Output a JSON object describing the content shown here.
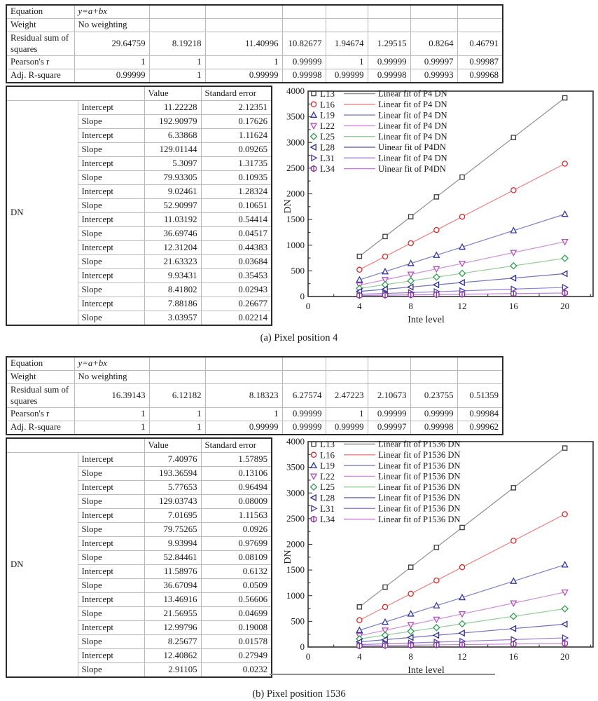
{
  "panels": [
    {
      "caption": "(a) Pixel position 4",
      "stats_table": {
        "rows": [
          {
            "label": "Equation",
            "cells": [
              "y=a+bx",
              "",
              "",
              "",
              "",
              "",
              "",
              ""
            ]
          },
          {
            "label": "Weight",
            "cells": [
              "No weighting",
              "",
              "",
              "",
              "",
              "",
              "",
              ""
            ]
          },
          {
            "label": "Residual sum of squares",
            "cells": [
              "29.64759",
              "8.19218",
              "11.40996",
              "10.82677",
              "1.94674",
              "1.29515",
              "0.8264",
              "0.46791"
            ]
          },
          {
            "label": "Pearson's r",
            "cells": [
              "1",
              "1",
              "1",
              "0.99999",
              "1",
              "0.99999",
              "0.99997",
              "0.99987"
            ]
          },
          {
            "label": "Adj. R-square",
            "cells": [
              "0.99999",
              "1",
              "0.99999",
              "0.99998",
              "0.99999",
              "0.99998",
              "0.99993",
              "0.99968"
            ]
          }
        ]
      },
      "fit_table": {
        "group_label": "DN",
        "col_headers": [
          "",
          "",
          "Value",
          "Standard error"
        ],
        "rows": [
          [
            "Intercept",
            "11.22228",
            "2.12351"
          ],
          [
            "Slope",
            "192.90979",
            "0.17626"
          ],
          [
            "Intercept",
            "6.33868",
            "1.11624"
          ],
          [
            "Slope",
            "129.01144",
            "0.09265"
          ],
          [
            "Intercept",
            "5.3097",
            "1.31735"
          ],
          [
            "Slope",
            "79.93305",
            "0.10935"
          ],
          [
            "Intercept",
            "9.02461",
            "1.28324"
          ],
          [
            "Slope",
            "52.90997",
            "0.10651"
          ],
          [
            "Intercept",
            "11.03192",
            "0.54414"
          ],
          [
            "Slope",
            "36.69746",
            "0.04517"
          ],
          [
            "Intercept",
            "12.31204",
            "0.44383"
          ],
          [
            "Slope",
            "21.63323",
            "0.03684"
          ],
          [
            "Intercept",
            "9.93431",
            "0.35453"
          ],
          [
            "Slope",
            "8.41802",
            "0.02943"
          ],
          [
            "Intercept",
            "7.88186",
            "0.26677"
          ],
          [
            "Slope",
            "3.03957",
            "0.02214"
          ]
        ]
      }
    },
    {
      "caption": "(b) Pixel position 1536",
      "stats_table": {
        "rows": [
          {
            "label": "Equation",
            "cells": [
              "y=a+bx",
              "",
              "",
              "",
              "",
              "",
              "",
              ""
            ]
          },
          {
            "label": "Weight",
            "cells": [
              "No weighting",
              "",
              "",
              "",
              "",
              "",
              "",
              ""
            ]
          },
          {
            "label": "Residual sum of squares",
            "cells": [
              "16.39143",
              "6.12182",
              "8.18323",
              "6.27574",
              "2.47223",
              "2.10673",
              "0.23755",
              "0.51359"
            ]
          },
          {
            "label": "Pearson's r",
            "cells": [
              "1",
              "1",
              "1",
              "0.99999",
              "1",
              "0.99999",
              "0.99999",
              "0.99984"
            ]
          },
          {
            "label": "Adj. R-square",
            "cells": [
              "1",
              "1",
              "0.99999",
              "0.99999",
              "0.99999",
              "0.99997",
              "0.99998",
              "0.99962"
            ]
          }
        ]
      },
      "fit_table": {
        "group_label": "DN",
        "col_headers": [
          "",
          "",
          "Value",
          "Standard error"
        ],
        "rows": [
          [
            "Intercept",
            "7.40976",
            "1.57895"
          ],
          [
            "Slope",
            "193.36594",
            "0.13106"
          ],
          [
            "Intercept",
            "5.77653",
            "0.96494"
          ],
          [
            "Slope",
            "129.03743",
            "0.08009"
          ],
          [
            "Intercept",
            "7.01695",
            "1.11563"
          ],
          [
            "Slope",
            "79.75265",
            "0.0926"
          ],
          [
            "Intercept",
            "9.93994",
            "0.97699"
          ],
          [
            "Slope",
            "52.84461",
            "0.08109"
          ],
          [
            "Intercept",
            "11.58976",
            "0.6132"
          ],
          [
            "Slope",
            "36.67094",
            "0.0509"
          ],
          [
            "Intercept",
            "13.46916",
            "0.56606"
          ],
          [
            "Slope",
            "21.56955",
            "0.04699"
          ],
          [
            "Intercept",
            "12.99796",
            "0.19008"
          ],
          [
            "Slope",
            "8.25677",
            "0.01578"
          ],
          [
            "Intercept",
            "12.40862",
            "0.27949"
          ],
          [
            "Slope",
            "2.91105",
            "0.0232"
          ]
        ]
      }
    }
  ],
  "chart_data": [
    {
      "type": "line",
      "title": "",
      "xlabel": "Inte level",
      "ylabel": "DN",
      "xlim": [
        0,
        22.2
      ],
      "ylim": [
        0,
        4000
      ],
      "xticks": [
        0,
        4,
        8,
        12,
        16,
        20
      ],
      "yticks": [
        0,
        500,
        1000,
        1500,
        2000,
        2500,
        3000,
        3500,
        4000
      ],
      "x_minor_step": 2,
      "y_minor_step": 250,
      "grid": false,
      "legend_position": "top-left-inside",
      "x": [
        4,
        6,
        8,
        10,
        12,
        16,
        20
      ],
      "series": [
        {
          "name": "L13",
          "fit_label": "Linear fit of P4 DN",
          "marker": "square",
          "marker_color": "#3d3d3d",
          "line_color": "#8f8f8f",
          "values": [
            783,
            1169,
            1555,
            1941,
            2326,
            3098,
            3869
          ]
        },
        {
          "name": "L16",
          "fit_label": "Linear fit of P4 DN",
          "marker": "circle",
          "marker_color": "#d42a2a",
          "line_color": "#ea8080",
          "values": [
            522,
            780,
            1038,
            1296,
            1555,
            2070,
            2587
          ]
        },
        {
          "name": "L19",
          "fit_label": "Linear fit of P4 DN",
          "marker": "triangle-up",
          "marker_color": "#32379b",
          "line_color": "#7b7fc4",
          "values": [
            325,
            485,
            645,
            805,
            964,
            1284,
            1604
          ]
        },
        {
          "name": "L22",
          "fit_label": "Linear fit of P4 DN",
          "marker": "triangle-down",
          "marker_color": "#b44fbe",
          "line_color": "#cc8fd6",
          "values": [
            221,
            326,
            432,
            538,
            644,
            856,
            1067
          ]
        },
        {
          "name": "L25",
          "fit_label": "Linear fit of P4 DN",
          "marker": "diamond",
          "marker_color": "#2f9e4f",
          "line_color": "#93cb98",
          "values": [
            158,
            231,
            305,
            378,
            451,
            598,
            745
          ]
        },
        {
          "name": "L28",
          "fit_label": "Uinear fit of P4DN",
          "marker": "triangle-left",
          "marker_color": "#2e2e8f",
          "line_color": "#7070b8",
          "values": [
            99,
            142,
            185,
            229,
            272,
            358,
            445
          ]
        },
        {
          "name": "L31",
          "fit_label": "Linear fit of P4 DN",
          "marker": "triangle-right",
          "marker_color": "#4a3fa5",
          "line_color": "#9a7fd0",
          "values": [
            44,
            60,
            77,
            94,
            111,
            145,
            178
          ]
        },
        {
          "name": "L34",
          "fit_label": "Uinear fit of P4DN",
          "marker": "hexagon",
          "marker_color": "#8a2f9e",
          "line_color": "#bd7fd2",
          "values": [
            20,
            26,
            32,
            38,
            44,
            57,
            69
          ]
        }
      ]
    },
    {
      "type": "line",
      "title": "",
      "xlabel": "Inte level",
      "ylabel": "DN",
      "xlim": [
        0,
        22.2
      ],
      "ylim": [
        0,
        4000
      ],
      "xticks": [
        0,
        4,
        8,
        12,
        16,
        20
      ],
      "yticks": [
        0,
        500,
        1000,
        1500,
        2000,
        2500,
        3000,
        3500,
        4000
      ],
      "x_minor_step": 2,
      "y_minor_step": 250,
      "grid": false,
      "legend_position": "top-left-inside",
      "x": [
        4,
        6,
        8,
        10,
        12,
        16,
        20
      ],
      "series": [
        {
          "name": "L13",
          "fit_label": "Linear fit of P1536 DN",
          "marker": "square",
          "marker_color": "#3d3d3d",
          "line_color": "#8f8f8f",
          "values": [
            781,
            1168,
            1554,
            1941,
            2328,
            3101,
            3875
          ]
        },
        {
          "name": "L16",
          "fit_label": "Linear fit of P1536 DN",
          "marker": "circle",
          "marker_color": "#d42a2a",
          "line_color": "#ea8080",
          "values": [
            522,
            780,
            1038,
            1296,
            1554,
            2070,
            2587
          ]
        },
        {
          "name": "L19",
          "fit_label": "Linear fit of P1536 DN",
          "marker": "triangle-up",
          "marker_color": "#32379b",
          "line_color": "#7b7fc4",
          "values": [
            326,
            486,
            645,
            805,
            964,
            1283,
            1602
          ]
        },
        {
          "name": "L22",
          "fit_label": "Linear fit of P1536 DN",
          "marker": "triangle-down",
          "marker_color": "#b44fbe",
          "line_color": "#cc8fd6",
          "values": [
            221,
            327,
            433,
            538,
            644,
            855,
            1067
          ]
        },
        {
          "name": "L25",
          "fit_label": "Linear fit of P1536 DN",
          "marker": "diamond",
          "marker_color": "#2f9e4f",
          "line_color": "#93cb98",
          "values": [
            158,
            232,
            305,
            378,
            452,
            598,
            745
          ]
        },
        {
          "name": "L28",
          "fit_label": "Linear fit of P1536 DN",
          "marker": "triangle-left",
          "marker_color": "#2e2e8f",
          "line_color": "#7070b8",
          "values": [
            100,
            143,
            186,
            229,
            272,
            359,
            445
          ]
        },
        {
          "name": "L31",
          "fit_label": "Linear fit of P1536 DN",
          "marker": "triangle-right",
          "marker_color": "#4a3fa5",
          "line_color": "#9a7fd0",
          "values": [
            46,
            63,
            79,
            96,
            112,
            145,
            178
          ]
        },
        {
          "name": "L34",
          "fit_label": "Linear fit of P1536 DN",
          "marker": "hexagon",
          "marker_color": "#8a2f9e",
          "line_color": "#bd7fd2",
          "values": [
            24,
            30,
            36,
            42,
            47,
            59,
            71
          ]
        }
      ]
    }
  ]
}
